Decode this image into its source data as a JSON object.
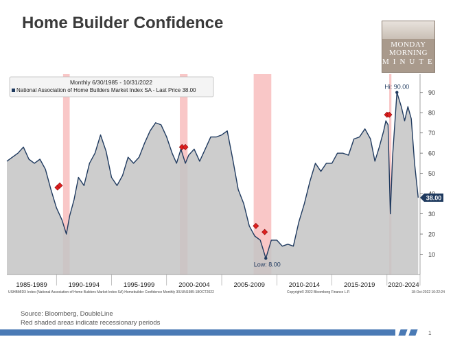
{
  "slide": {
    "title": "Home Builder Confidence",
    "logo_lines": [
      "MONDAY",
      "MORNING",
      "MINUTES"
    ],
    "source": "Source: Bloomberg, DoubleLine",
    "note": "Red shaded areas indicate recessionary periods",
    "page_number": "1"
  },
  "colors": {
    "series_line": "#1f3a5f",
    "area_fill": "#c4c4c4",
    "recession": "#f7b4b4",
    "marker": "#e02020",
    "footer_bar": "#4a7ab5"
  },
  "chart_data": {
    "type": "area",
    "legend": {
      "period": "Monthly 6/30/1985 - 10/31/2022",
      "series_label": "National Association of Home Builders Market Index SA - Last Price 38.00"
    },
    "series": [
      {
        "name": "National Association of Home Builders Market Index SA",
        "points": [
          [
            1985.5,
            56
          ],
          [
            1986.0,
            58
          ],
          [
            1986.5,
            60
          ],
          [
            1987.0,
            63
          ],
          [
            1987.5,
            57
          ],
          [
            1988.0,
            55
          ],
          [
            1988.5,
            57
          ],
          [
            1989.0,
            52
          ],
          [
            1989.5,
            42
          ],
          [
            1990.0,
            33
          ],
          [
            1990.5,
            27
          ],
          [
            1990.9,
            20
          ],
          [
            1991.2,
            29
          ],
          [
            1991.6,
            37
          ],
          [
            1992.0,
            48
          ],
          [
            1992.5,
            44
          ],
          [
            1993.0,
            55
          ],
          [
            1993.5,
            60
          ],
          [
            1994.0,
            69
          ],
          [
            1994.5,
            61
          ],
          [
            1995.0,
            48
          ],
          [
            1995.5,
            44
          ],
          [
            1996.0,
            49
          ],
          [
            1996.5,
            58
          ],
          [
            1997.0,
            55
          ],
          [
            1997.5,
            58
          ],
          [
            1998.0,
            65
          ],
          [
            1998.5,
            71
          ],
          [
            1999.0,
            75
          ],
          [
            1999.5,
            74
          ],
          [
            2000.0,
            68
          ],
          [
            2000.5,
            60
          ],
          [
            2000.9,
            55
          ],
          [
            2001.3,
            62
          ],
          [
            2001.7,
            55
          ],
          [
            2002.0,
            59
          ],
          [
            2002.5,
            62
          ],
          [
            2003.0,
            56
          ],
          [
            2003.5,
            62
          ],
          [
            2004.0,
            68
          ],
          [
            2004.5,
            68
          ],
          [
            2005.0,
            69
          ],
          [
            2005.5,
            71
          ],
          [
            2006.0,
            57
          ],
          [
            2006.5,
            42
          ],
          [
            2007.0,
            35
          ],
          [
            2007.5,
            24
          ],
          [
            2008.0,
            19
          ],
          [
            2008.5,
            17
          ],
          [
            2009.0,
            8
          ],
          [
            2009.5,
            17
          ],
          [
            2010.0,
            17
          ],
          [
            2010.5,
            14
          ],
          [
            2011.0,
            15
          ],
          [
            2011.5,
            14
          ],
          [
            2012.0,
            26
          ],
          [
            2012.5,
            35
          ],
          [
            2013.0,
            46
          ],
          [
            2013.5,
            55
          ],
          [
            2014.0,
            51
          ],
          [
            2014.5,
            55
          ],
          [
            2015.0,
            55
          ],
          [
            2015.5,
            60
          ],
          [
            2016.0,
            60
          ],
          [
            2016.5,
            59
          ],
          [
            2017.0,
            67
          ],
          [
            2017.5,
            68
          ],
          [
            2018.0,
            72
          ],
          [
            2018.5,
            67
          ],
          [
            2018.9,
            56
          ],
          [
            2019.3,
            63
          ],
          [
            2019.7,
            71
          ],
          [
            2019.9,
            76
          ],
          [
            2020.1,
            74
          ],
          [
            2020.3,
            30
          ],
          [
            2020.5,
            58
          ],
          [
            2020.9,
            90
          ],
          [
            2021.3,
            83
          ],
          [
            2021.6,
            76
          ],
          [
            2021.9,
            83
          ],
          [
            2022.2,
            77
          ],
          [
            2022.5,
            55
          ],
          [
            2022.83,
            38
          ]
        ]
      }
    ],
    "recessions": [
      [
        1990.6,
        1991.2
      ],
      [
        2001.2,
        2001.9
      ],
      [
        2007.9,
        2009.5
      ],
      [
        2020.2,
        2020.4
      ]
    ],
    "event_markers": [
      [
        1990.1,
        43
      ],
      [
        1990.3,
        44
      ],
      [
        2001.4,
        63
      ],
      [
        2001.7,
        63
      ],
      [
        2008.1,
        24
      ],
      [
        2008.9,
        21
      ],
      [
        2020.0,
        79
      ],
      [
        2020.2,
        79
      ]
    ],
    "hi_label": "Hi: 90.00",
    "low_label": "Low: 8.00",
    "last_price_label": "38.00",
    "xlim": [
      1985.5,
      2023.0
    ],
    "ylim": [
      0,
      95
    ],
    "y_ticks": [
      10,
      20,
      30,
      40,
      50,
      60,
      70,
      80,
      90
    ],
    "y_tick_labels": [
      "10",
      "20",
      "30",
      "40",
      "50",
      "60",
      "70",
      "80",
      "90"
    ],
    "x_ticks": [
      "1985-1989",
      "1990-1994",
      "1995-1999",
      "2000-2004",
      "2005-2009",
      "2010-2014",
      "2015-2019",
      "2020-2024"
    ],
    "x_tick_ranges": [
      [
        1985,
        1990
      ],
      [
        1990,
        1995
      ],
      [
        1995,
        2000
      ],
      [
        2000,
        2005
      ],
      [
        2005,
        2010
      ],
      [
        2010,
        2015
      ],
      [
        2015,
        2020
      ],
      [
        2020,
        2025
      ]
    ],
    "bottom_left_note": "USHBMIDX Index (National Association of Home Builders Market Index SA) Homebuilder Confidence  Monthly 30JUN1985-18OCT2022",
    "bottom_center_note": "Copyright© 2022 Bloomberg Finance L.P.",
    "bottom_right_note": "18-Oct-2022 10:22:24",
    "grid": false
  }
}
